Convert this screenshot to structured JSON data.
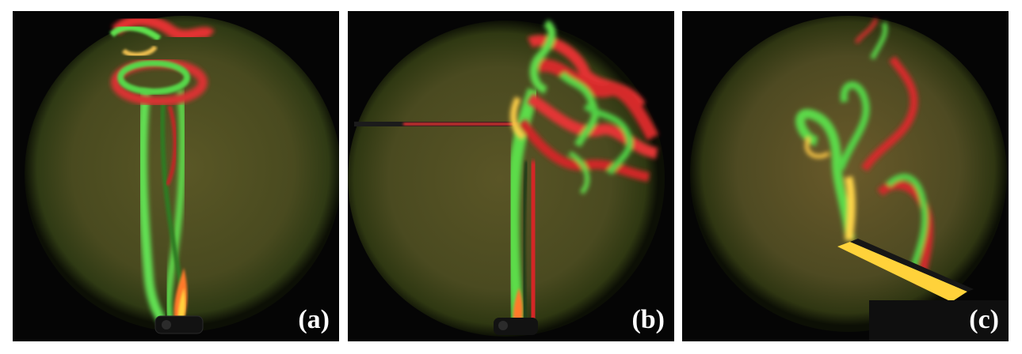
{
  "figure": {
    "panels": [
      {
        "label": "(a)"
      },
      {
        "label": "(b)"
      },
      {
        "label": "(c)"
      }
    ],
    "colors": {
      "background_disc": "#4a4a22",
      "plume_green": "#4ade4a",
      "plume_red": "#e62b2b",
      "flame_orange": "#ff8a2b",
      "frame_black": "#050505"
    }
  }
}
